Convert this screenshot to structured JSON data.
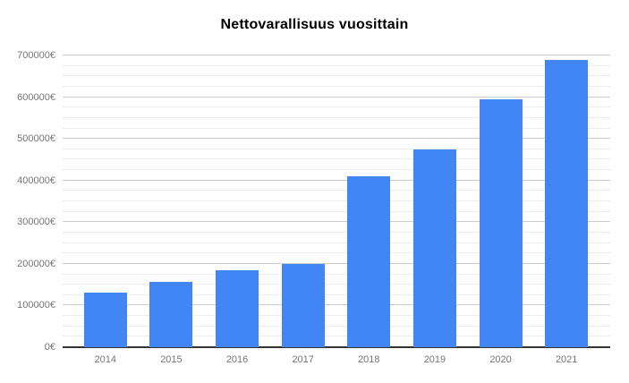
{
  "chart_data": {
    "type": "bar",
    "title": "Nettovarallisuus vuosittain",
    "categories": [
      "2014",
      "2015",
      "2016",
      "2017",
      "2018",
      "2019",
      "2020",
      "2021"
    ],
    "values": [
      131000,
      156000,
      185000,
      200000,
      411000,
      475000,
      595000,
      690000
    ],
    "xlabel": "",
    "ylabel": "",
    "ylim": [
      0,
      700000
    ],
    "y_major_step": 100000,
    "y_minor_step": 25000,
    "y_tick_labels": [
      "0€",
      "100000€",
      "200000€",
      "300000€",
      "400000€",
      "500000€",
      "600000€",
      "700000€"
    ],
    "grid": true,
    "legend_position": "none",
    "bar_color": "#4285f4"
  },
  "colors": {
    "bar": "#4285f4",
    "grid_major": "#cccccc",
    "grid_minor": "#ececec",
    "baseline": "#333333",
    "axis_text": "#757575",
    "title_text": "#000000",
    "background": "#ffffff"
  }
}
